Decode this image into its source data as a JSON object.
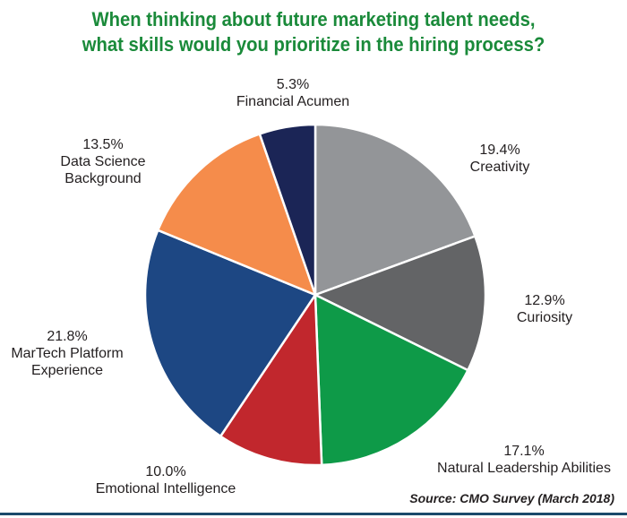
{
  "title_line1": "When thinking about future marketing talent needs,",
  "title_line2": "what skills would you prioritize in the hiring process?",
  "source": "Source: CMO Survey (March 2018)",
  "chart_data": {
    "type": "pie",
    "title": "When thinking about future marketing talent needs, what skills would you prioritize in the hiring process?",
    "slices": [
      {
        "label": "Creativity",
        "value": 19.4,
        "display": "19.4%",
        "color": "#939598"
      },
      {
        "label": "Curiosity",
        "value": 12.9,
        "display": "12.9%",
        "color": "#636466"
      },
      {
        "label": "Natural Leadership Abilities",
        "value": 17.1,
        "display": "17.1%",
        "color": "#0e9a48"
      },
      {
        "label": "Emotional Intelligence",
        "value": 10.0,
        "display": "10.0%",
        "color": "#c1272d"
      },
      {
        "label": "MarTech Platform Experience",
        "value": 21.8,
        "display": "21.8%",
        "color": "#1d4783"
      },
      {
        "label": "Data Science Background",
        "value": 13.5,
        "display": "13.5%",
        "color": "#f58c4b"
      },
      {
        "label": "Financial Acumen",
        "value": 5.3,
        "display": "5.3%",
        "color": "#1b2556"
      }
    ]
  },
  "labels": {
    "creativity": {
      "pct": "19.4%",
      "lines": [
        "Creativity"
      ]
    },
    "curiosity": {
      "pct": "12.9%",
      "lines": [
        "Curiosity"
      ]
    },
    "leadership": {
      "pct": "17.1%",
      "lines": [
        "Natural Leadership Abilities"
      ]
    },
    "emotional": {
      "pct": "10.0%",
      "lines": [
        "Emotional Intelligence"
      ]
    },
    "martech": {
      "pct": "21.8%",
      "lines": [
        "MarTech Platform",
        "Experience"
      ]
    },
    "datascience": {
      "pct": "13.5%",
      "lines": [
        "Data Science",
        "Background"
      ]
    },
    "financial": {
      "pct": "5.3%",
      "lines": [
        "Financial Acumen"
      ]
    }
  }
}
